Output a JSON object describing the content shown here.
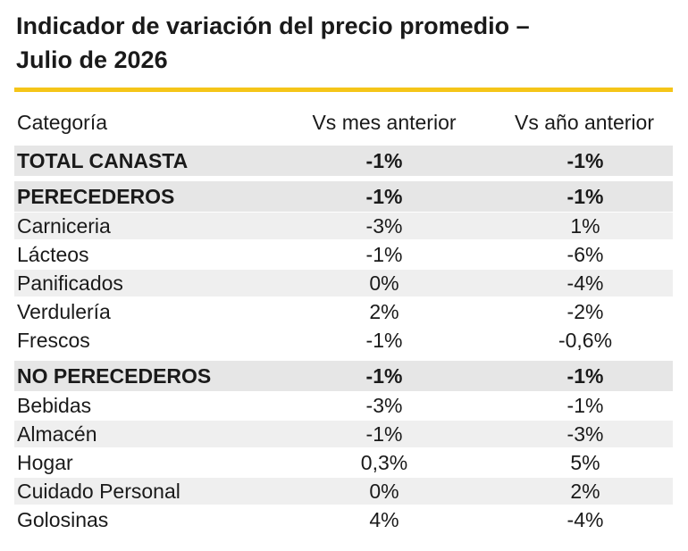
{
  "title_line1": "Indicador de variación del precio promedio –",
  "title_line2": "Julio de 2026",
  "colors": {
    "accent_rule": "#f5c518",
    "shade": "#e6e6e6",
    "light_shade": "#efefef"
  },
  "chart_data": {
    "type": "table",
    "columns": [
      "Categoría",
      "Vs mes anterior",
      "Vs año anterior"
    ],
    "rows": [
      {
        "category": "TOTAL CANASTA",
        "vs_mes": "-1%",
        "vs_ano": "-1%",
        "bold": true,
        "shade": "dark"
      },
      {
        "category": "PERECEDEROS",
        "vs_mes": "-1%",
        "vs_ano": "-1%",
        "bold": true,
        "shade": "dark"
      },
      {
        "category": "Carniceria",
        "vs_mes": "-3%",
        "vs_ano": "1%",
        "bold": false,
        "shade": "light"
      },
      {
        "category": "Lácteos",
        "vs_mes": "-1%",
        "vs_ano": "-6%",
        "bold": false,
        "shade": "none"
      },
      {
        "category": "Panificados",
        "vs_mes": "0%",
        "vs_ano": "-4%",
        "bold": false,
        "shade": "light"
      },
      {
        "category": "Verdulería",
        "vs_mes": "2%",
        "vs_ano": "-2%",
        "bold": false,
        "shade": "none"
      },
      {
        "category": "Frescos",
        "vs_mes": "-1%",
        "vs_ano": "-0,6%",
        "bold": false,
        "shade": "none"
      },
      {
        "category": "NO PERECEDEROS",
        "vs_mes": "-1%",
        "vs_ano": "-1%",
        "bold": true,
        "shade": "dark"
      },
      {
        "category": "Bebidas",
        "vs_mes": "-3%",
        "vs_ano": "-1%",
        "bold": false,
        "shade": "none"
      },
      {
        "category": "Almacén",
        "vs_mes": "-1%",
        "vs_ano": "-3%",
        "bold": false,
        "shade": "light"
      },
      {
        "category": "Hogar",
        "vs_mes": "0,3%",
        "vs_ano": "5%",
        "bold": false,
        "shade": "none"
      },
      {
        "category": "Cuidado Personal",
        "vs_mes": "0%",
        "vs_ano": "2%",
        "bold": false,
        "shade": "light"
      },
      {
        "category": "Golosinas",
        "vs_mes": "4%",
        "vs_ano": "-4%",
        "bold": false,
        "shade": "none"
      }
    ]
  }
}
